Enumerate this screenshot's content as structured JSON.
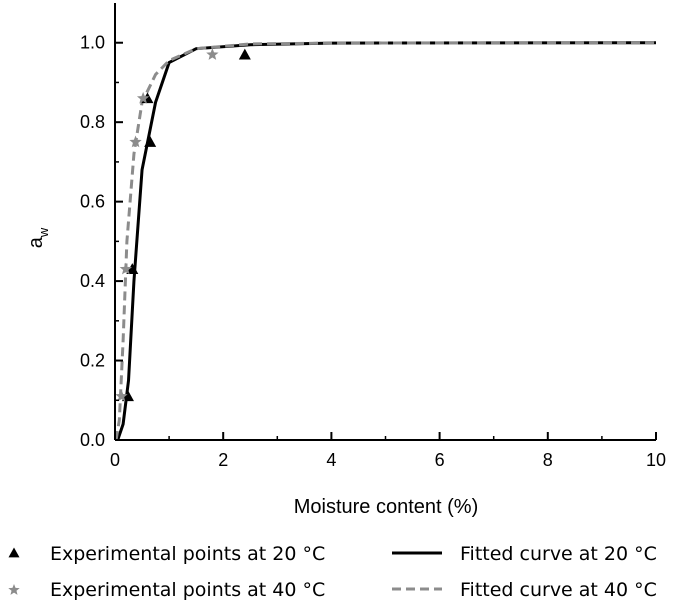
{
  "chart_data": {
    "type": "scatter",
    "xlabel": "Moisture content (%)",
    "ylabel": "a",
    "ylabel_sub": "w",
    "xlim": [
      0,
      10
    ],
    "ylim": [
      0,
      1.1
    ],
    "x_ticks": [
      0,
      2,
      4,
      6,
      8,
      10
    ],
    "x_tick_labels": [
      "0",
      "2",
      "4",
      "6",
      "8",
      "10"
    ],
    "y_ticks": [
      0,
      0.2,
      0.4,
      0.6,
      0.8,
      1.0
    ],
    "y_tick_labels": [
      "0.0",
      "0.2",
      "0.4",
      "0.6",
      "0.8",
      "1.0"
    ],
    "grid": false,
    "legend_position": "bottom",
    "colors": {
      "series_20": "#000000",
      "series_40": "#8c8c8c"
    },
    "series": [
      {
        "name": "Experimental points at 20 °C",
        "kind": "points",
        "marker": "triangle",
        "color": "#000000",
        "points": [
          [
            0.24,
            0.11
          ],
          [
            0.32,
            0.43
          ],
          [
            0.65,
            0.75
          ],
          [
            0.6,
            0.86
          ],
          [
            2.4,
            0.97
          ]
        ]
      },
      {
        "name": "Experimental points at 40 °C",
        "kind": "points",
        "marker": "star",
        "color": "#8c8c8c",
        "points": [
          [
            0.12,
            0.11
          ],
          [
            0.2,
            0.43
          ],
          [
            0.38,
            0.75
          ],
          [
            0.52,
            0.86
          ],
          [
            1.8,
            0.97
          ]
        ]
      },
      {
        "name": "Fitted curve at 20 °C",
        "kind": "line",
        "dash": "solid",
        "color": "#000000",
        "points": [
          [
            0.05,
            0.0
          ],
          [
            0.15,
            0.04
          ],
          [
            0.25,
            0.15
          ],
          [
            0.35,
            0.4
          ],
          [
            0.5,
            0.68
          ],
          [
            0.75,
            0.85
          ],
          [
            1.0,
            0.95
          ],
          [
            1.5,
            0.985
          ],
          [
            2.5,
            0.995
          ],
          [
            4,
            0.999
          ],
          [
            10,
            1.0
          ]
        ]
      },
      {
        "name": "Fitted curve at 40 °C",
        "kind": "line",
        "dash": "dashed",
        "color": "#8c8c8c",
        "points": [
          [
            0.02,
            0.0
          ],
          [
            0.08,
            0.05
          ],
          [
            0.15,
            0.25
          ],
          [
            0.22,
            0.5
          ],
          [
            0.35,
            0.72
          ],
          [
            0.5,
            0.85
          ],
          [
            0.75,
            0.92
          ],
          [
            1.0,
            0.955
          ],
          [
            1.5,
            0.985
          ],
          [
            2.5,
            0.997
          ],
          [
            4,
            0.999
          ],
          [
            10,
            1.0
          ]
        ]
      }
    ]
  }
}
